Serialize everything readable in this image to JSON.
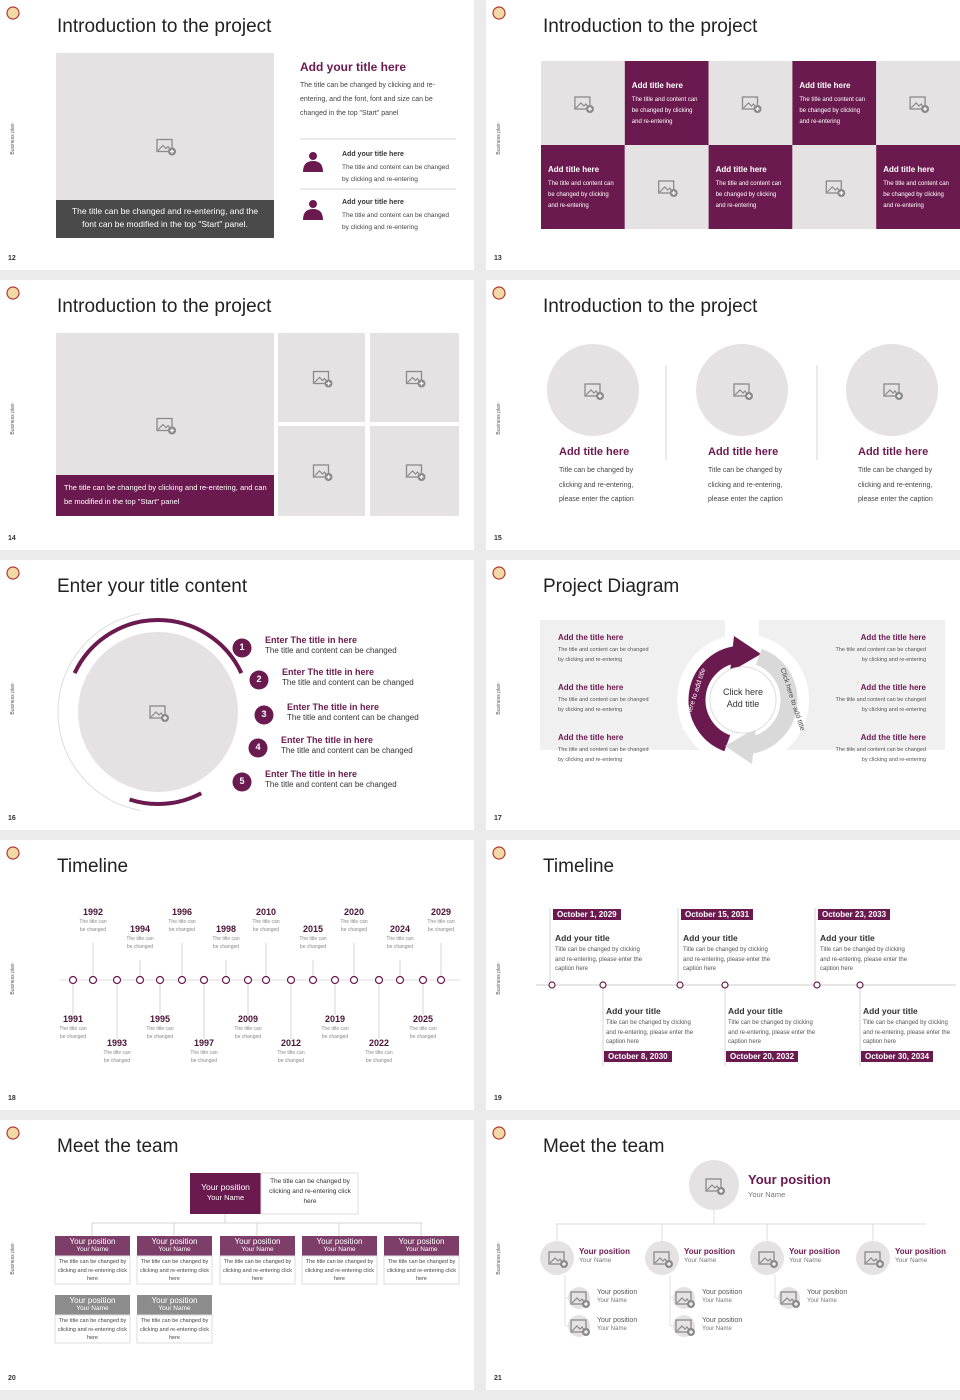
{
  "slides": [
    {
      "number": 12,
      "side": "Business plan",
      "title": "Introduction to the project",
      "caption": "The title can be changed and re-entering, and the font can be modified in the top \"Start\" panel.",
      "heading": "Add your title here",
      "body": "The title can be changed by clicking and re-entering, and the font, font and size can be changed in the top \"Start\" panel",
      "items": [
        {
          "title": "Add your title here",
          "text": "The title and content can be changed by clicking and re-entering"
        },
        {
          "title": "Add your title here",
          "text": "The title and content can be changed by clicking and re-entering"
        }
      ]
    },
    {
      "number": 13,
      "side": "Business plan",
      "title": "Introduction to the project",
      "cards": [
        {
          "title": "Add title here",
          "text": "The title and content can be changed by clicking and re-entering"
        },
        {
          "title": "Add title here",
          "text": "The title and content can be changed by clicking and re-entering"
        },
        {
          "title": "Add title here",
          "text": "The title and content can be changed by clicking and re-entering"
        },
        {
          "title": "Add title here",
          "text": "The title and content can be changed by clicking and re-entering"
        },
        {
          "title": "Add title here",
          "text": "The title and content can be changed by clicking and re-entering"
        }
      ]
    },
    {
      "number": 14,
      "side": "Business plan",
      "title": "Introduction to the project",
      "caption": "The title can be changed by clicking and re-entering, and can be modified in the top \"Start\" panel"
    },
    {
      "number": 15,
      "side": "Business plan",
      "title": "Introduction to the project",
      "columns": [
        {
          "title": "Add title here",
          "text": "Title can be changed by clicking and re-entering, please enter the caption"
        },
        {
          "title": "Add title here",
          "text": "Title can be changed by clicking and re-entering, please enter the caption"
        },
        {
          "title": "Add title here",
          "text": "Title can be changed by clicking and re-entering, please enter the caption"
        }
      ]
    },
    {
      "number": 16,
      "side": "Business plan",
      "title": "Enter your title content",
      "items": [
        {
          "num": 1,
          "title": "Enter The title in here",
          "text": "The title and content can be changed"
        },
        {
          "num": 2,
          "title": "Enter The title in here",
          "text": "The title and content can be changed"
        },
        {
          "num": 3,
          "title": "Enter The title in here",
          "text": "The title and content can be changed"
        },
        {
          "num": 4,
          "title": "Enter The title in here",
          "text": "The title and content can be changed"
        },
        {
          "num": 5,
          "title": "Enter The title in here",
          "text": "The title and content can be changed"
        }
      ]
    },
    {
      "number": 17,
      "side": "Business plan",
      "title": "Project Diagram",
      "center": [
        "Click here",
        "Add title"
      ],
      "arc_labels": [
        "Click here to add title",
        "Click here to add title"
      ],
      "items": [
        {
          "title": "Add the title here",
          "text": "The title and content can be changed by clicking and re-entering"
        },
        {
          "title": "Add the title here",
          "text": "The title and content can be changed by clicking and re-entering"
        },
        {
          "title": "Add the title here",
          "text": "The title and content can be changed by clicking and re-entering"
        },
        {
          "title": "Add the title here",
          "text": "The title and content can be changed by clicking and re-entering"
        },
        {
          "title": "Add the title here",
          "text": "The title and content can be changed by clicking and re-entering"
        },
        {
          "title": "Add the title here",
          "text": "The title and content can be changed by clicking and re-entering"
        }
      ]
    },
    {
      "number": 18,
      "side": "Business plan",
      "title": "Timeline",
      "events": [
        {
          "year": "1991",
          "text": "The title can be changed"
        },
        {
          "year": "1992",
          "text": "The title can be changed"
        },
        {
          "year": "1993",
          "text": "The title can be changed"
        },
        {
          "year": "1994",
          "text": "The title can be changed"
        },
        {
          "year": "1995",
          "text": "The title can be changed"
        },
        {
          "year": "1996",
          "text": "The title can be changed"
        },
        {
          "year": "1997",
          "text": "The title can be changed"
        },
        {
          "year": "1998",
          "text": "The title can be changed"
        },
        {
          "year": "2009",
          "text": "The title can be changed"
        },
        {
          "year": "2010",
          "text": "The title can be changed"
        },
        {
          "year": "2012",
          "text": "The title can be changed"
        },
        {
          "year": "2015",
          "text": "The title can be changed"
        },
        {
          "year": "2019",
          "text": "The title can be changed"
        },
        {
          "year": "2020",
          "text": "The title can be changed"
        },
        {
          "year": "2022",
          "text": "The title can be changed"
        },
        {
          "year": "2024",
          "text": "The title can be changed"
        },
        {
          "year": "2025",
          "text": "The title can be changed"
        },
        {
          "year": "2029",
          "text": "The title can be changed"
        }
      ]
    },
    {
      "number": 19,
      "side": "Business plan",
      "title": "Timeline",
      "events": [
        {
          "date": "October 1, 2029",
          "title": "Add your title",
          "text": "Title can be changed by clicking and re-entering, please enter the caption here"
        },
        {
          "date": "October 8, 2030",
          "title": "Add your title",
          "text": "Title can be changed by clicking and re-entering, please enter the caption here"
        },
        {
          "date": "October 15, 2031",
          "title": "Add your title",
          "text": "Title can be changed by clicking and re-entering, please enter the caption here"
        },
        {
          "date": "October 20, 2032",
          "title": "Add your title",
          "text": "Title can be changed by clicking and re-entering, please enter the caption here"
        },
        {
          "date": "October 23, 2033",
          "title": "Add your title",
          "text": "Title can be changed by clicking and re-entering, please enter the caption here"
        },
        {
          "date": "October 30, 2034",
          "title": "Add your title",
          "text": "Title can be changed by clicking and re-entering, please enter the caption here"
        }
      ]
    },
    {
      "number": 20,
      "side": "Business plan",
      "title": "Meet the team",
      "lead": {
        "position": "Your position",
        "name": "Your Name",
        "text": "The title can be changed by clicking and re-entering click here"
      },
      "members": [
        {
          "position": "Your position",
          "name": "Your Name",
          "text": "The title can be changed by clicking and re-entering click here"
        },
        {
          "position": "Your position",
          "name": "Your Name",
          "text": "The title can be changed by clicking and re-entering click here"
        },
        {
          "position": "Your position",
          "name": "Your Name",
          "text": "The title can be changed by clicking and re-entering click here"
        },
        {
          "position": "Your position",
          "name": "Your Name",
          "text": "The title can be changed by clicking and re-entering click here"
        },
        {
          "position": "Your position",
          "name": "Your Name",
          "text": "The title can be changed by clicking and re-entering click here"
        },
        {
          "position": "Your position",
          "name": "Your Name",
          "text": "The title can be changed by clicking and re-entering click here"
        },
        {
          "position": "Your position",
          "name": "Your Name",
          "text": "The title can be changed by clicking and re-entering click here"
        }
      ]
    },
    {
      "number": 21,
      "side": "Business plan",
      "title": "Meet the team",
      "lead": {
        "position": "Your position",
        "name": "Your Name"
      },
      "level2": [
        {
          "position": "Your position",
          "name": "Your Name"
        },
        {
          "position": "Your position",
          "name": "Your Name"
        },
        {
          "position": "Your position",
          "name": "Your Name"
        },
        {
          "position": "Your position",
          "name": "Your Name"
        }
      ],
      "level3": [
        {
          "position": "Your position",
          "name": "Your Name"
        },
        {
          "position": "Your position",
          "name": "Your Name"
        },
        {
          "position": "Your position",
          "name": "Your Name"
        },
        {
          "position": "Your position",
          "name": "Your Name"
        },
        {
          "position": "Your position",
          "name": "Your Name"
        }
      ]
    }
  ]
}
